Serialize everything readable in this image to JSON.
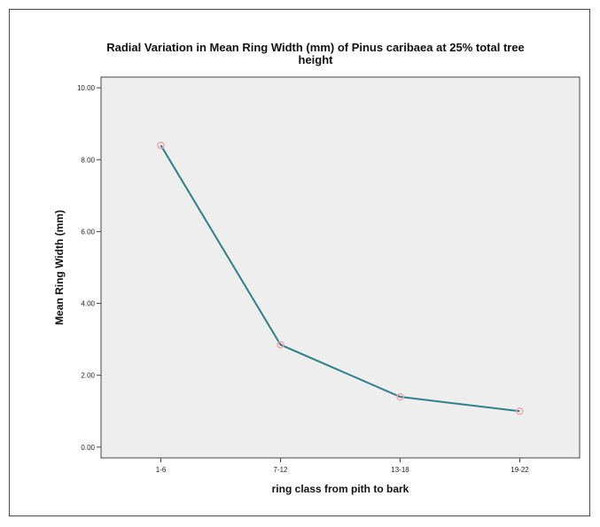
{
  "chart_data": {
    "type": "line",
    "title_lines": [
      "Radial Variation in Mean Ring Width (mm) of Pinus caribaea at 25% total tree",
      "height"
    ],
    "xlabel": "ring class from pith to bark",
    "ylabel": "Mean Ring Width (mm)",
    "categories": [
      "1-6",
      "7-12",
      "13-18",
      "19-22"
    ],
    "values": [
      8.4,
      2.85,
      1.4,
      1.0
    ],
    "ylim": [
      -0.3,
      10.3
    ],
    "yticks": [
      0.0,
      2.0,
      4.0,
      6.0,
      8.0,
      10.0
    ],
    "ytick_labels": [
      "0.00",
      "2.00",
      "4.00",
      "6.00",
      "8.00",
      "10.00"
    ],
    "grid": false,
    "colors": {
      "line": "#2e7f8c",
      "marker": "#f2a7ad",
      "plot_background": "#eeeeee",
      "frame": "#444444"
    }
  }
}
